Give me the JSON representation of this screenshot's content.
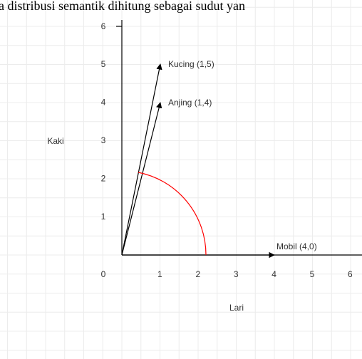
{
  "caption": "a distribusi semantik dihitung sebagai sudut yan",
  "y_axis_label": "Kaki",
  "x_axis_label": "Lari",
  "origin_label": "0",
  "x_tick_labels": [
    "1",
    "2",
    "3",
    "4",
    "5",
    "6"
  ],
  "y_tick_labels": [
    "1",
    "2",
    "3",
    "4",
    "5",
    "6"
  ],
  "vectors": [
    {
      "label": "Kucing (1,5)"
    },
    {
      "label": "Anjing (1,4)"
    },
    {
      "label": "Mobil (4,0)"
    }
  ]
}
